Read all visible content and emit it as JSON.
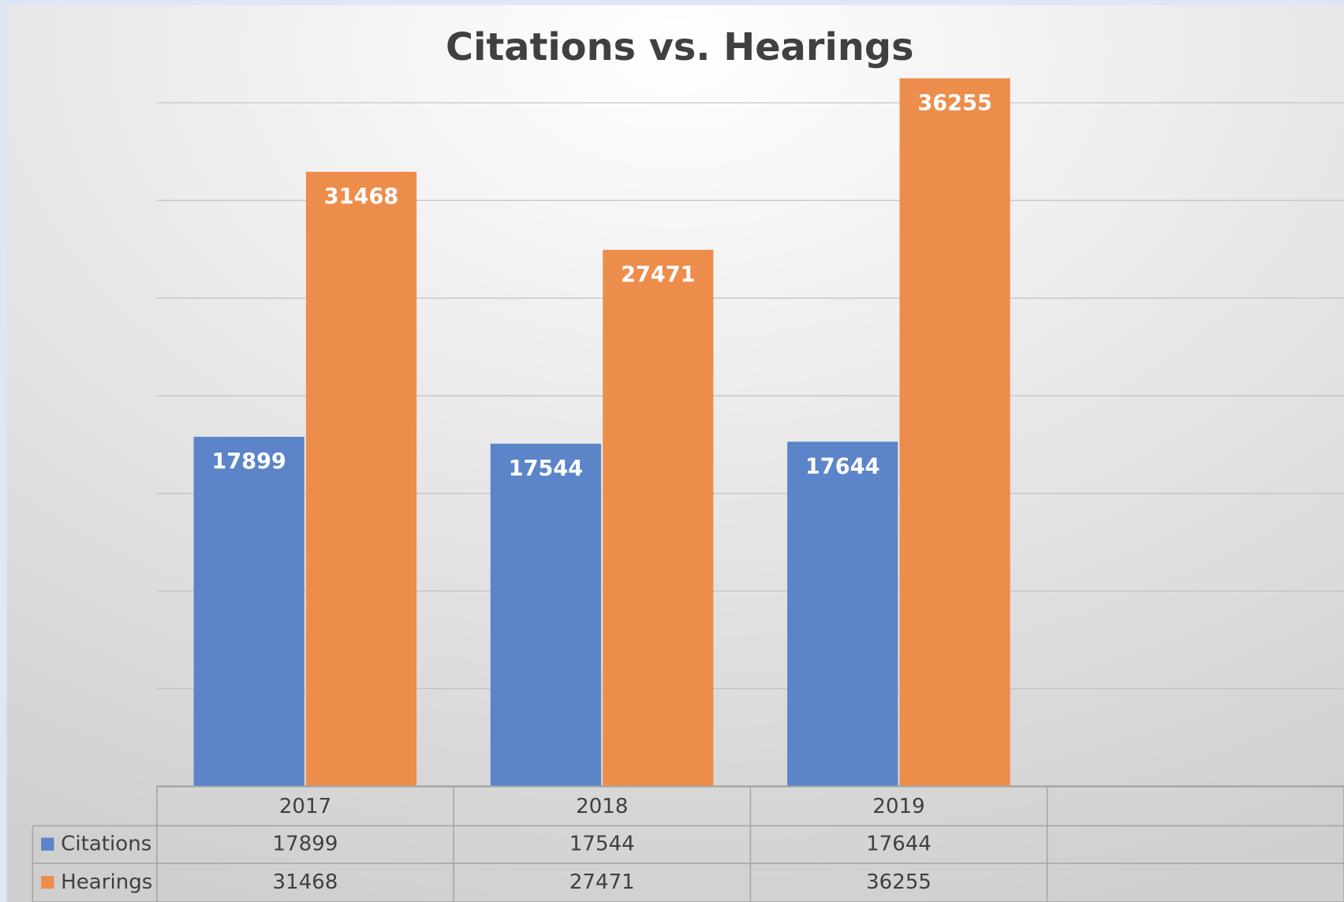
{
  "chart_data": {
    "type": "bar",
    "title": "Citations vs. Hearings",
    "categories": [
      "2017",
      "2018",
      "2019",
      null
    ],
    "series": [
      {
        "name": "Citations",
        "color": "#5b84c9",
        "values": [
          17899,
          17544,
          17644,
          null
        ]
      },
      {
        "name": "Hearings",
        "color": "#ed8d4c",
        "values": [
          31468,
          27471,
          36255,
          null
        ]
      }
    ],
    "ylim": [
      0,
      40000
    ],
    "yticks": [
      0,
      5000,
      10000,
      15000,
      20000,
      25000,
      30000,
      35000
    ],
    "grid": true,
    "data_table": true
  }
}
